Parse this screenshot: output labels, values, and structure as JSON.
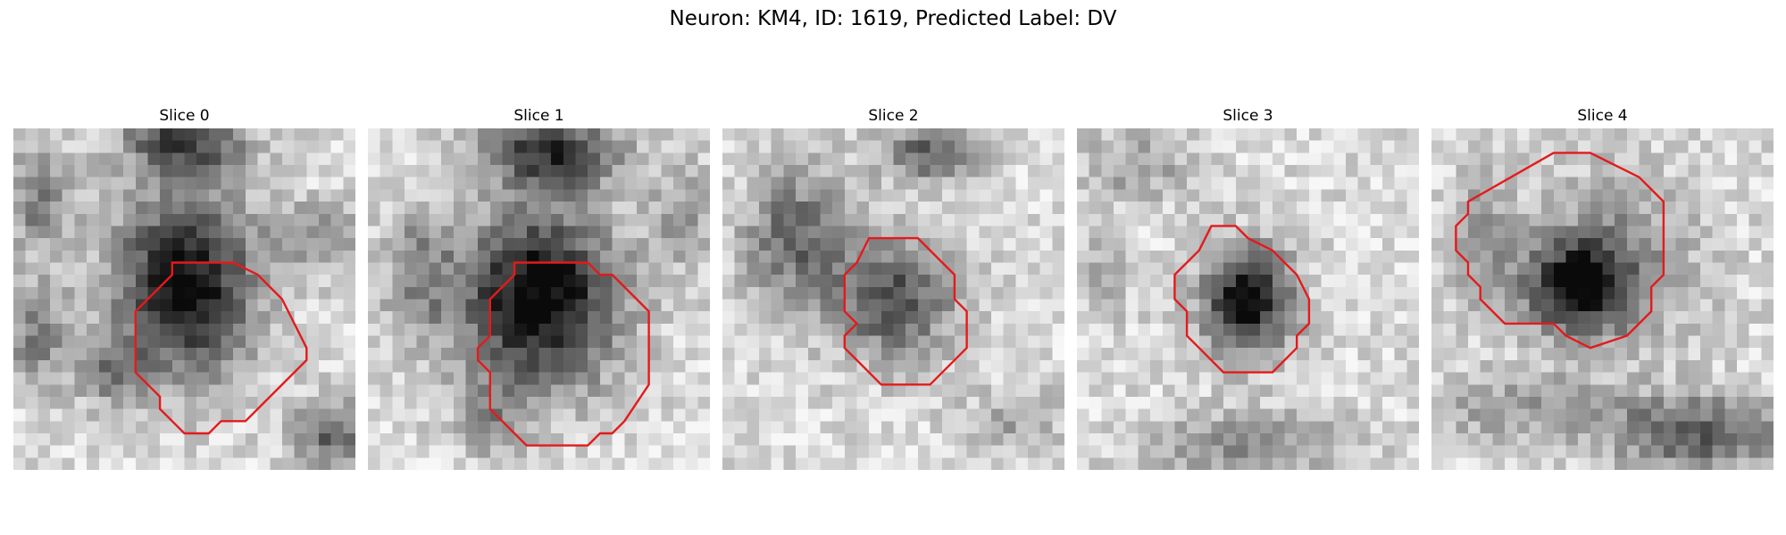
{
  "figure": {
    "title": "Neuron: KM4, ID: 1619, Predicted Label: DV"
  },
  "panels": [
    {
      "title": "Slice 0"
    },
    {
      "title": "Slice 1"
    },
    {
      "title": "Slice 2"
    },
    {
      "title": "Slice 3"
    },
    {
      "title": "Slice 4"
    }
  ],
  "colors": {
    "contour": "#e41a1c",
    "background": "#ffffff"
  }
}
